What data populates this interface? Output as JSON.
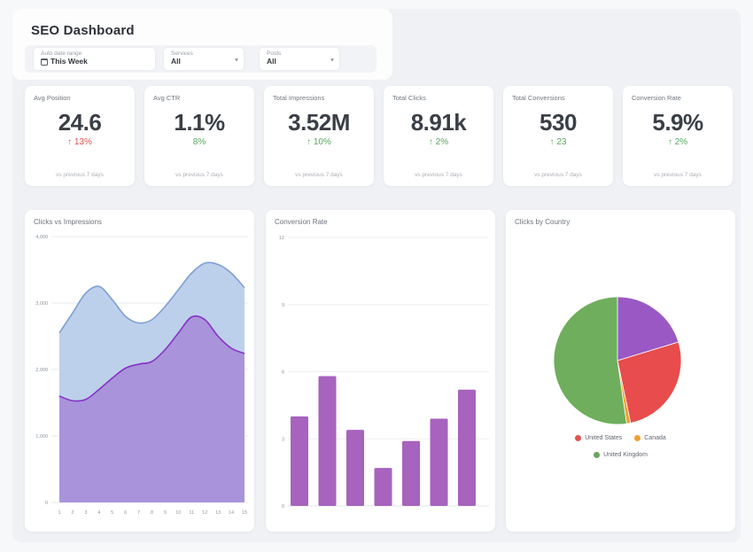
{
  "page": {
    "title": "SEO Dashboard"
  },
  "filters": {
    "date_range": {
      "label": "Auto date range",
      "value": "This Week",
      "icon": "calendar-icon"
    },
    "services": {
      "label": "Services",
      "value": "All",
      "icon": "chevron-down-icon",
      "chevron": "▾"
    },
    "posts": {
      "label": "Posts",
      "value": "All",
      "icon": "chevron-down-icon",
      "chevron": "▾"
    }
  },
  "kpis": [
    {
      "label": "Avg Position",
      "value": "24.6",
      "delta": "↑ 13%",
      "delta_color": "#d9534f",
      "footnote": "vs previous 7 days"
    },
    {
      "label": "Avg CTR",
      "value": "1.1%",
      "delta": "8%",
      "delta_color": "#58a85c",
      "footnote": "vs previous 7 days"
    },
    {
      "label": "Total Impressions",
      "value": "3.52M",
      "delta": "↑ 10%",
      "delta_color": "#58a85c",
      "footnote": "vs previous 7 days"
    },
    {
      "label": "Total Clicks",
      "value": "8.91k",
      "delta": "↑ 2%",
      "delta_color": "#58a85c",
      "footnote": "vs previous 7 days"
    },
    {
      "label": "Total Conversions",
      "value": "530",
      "delta": "↑ 23",
      "delta_color": "#58a85c",
      "footnote": "vs previous 7 days"
    },
    {
      "label": "Conversion Rate",
      "value": "5.9%",
      "delta": "↑ 2%",
      "delta_color": "#58a85c",
      "footnote": "vs previous 7 days"
    }
  ],
  "chart_data": [
    {
      "type": "area",
      "title": "Clicks vs Impressions",
      "x": [
        1,
        2,
        3,
        4,
        5,
        6,
        7,
        8,
        9,
        10,
        11,
        12,
        13,
        14,
        15
      ],
      "series": [
        {
          "name": "Impressions",
          "values": [
            2550,
            2850,
            3150,
            3250,
            3050,
            2800,
            2700,
            2750,
            2950,
            3200,
            3450,
            3600,
            3580,
            3450,
            3230
          ],
          "line_color": "#7e9fd4",
          "fill_color": "#b9cdea"
        },
        {
          "name": "Clicks",
          "values": [
            1600,
            1530,
            1550,
            1700,
            1870,
            2020,
            2080,
            2120,
            2300,
            2550,
            2790,
            2750,
            2500,
            2320,
            2240
          ],
          "line_color": "#8632c6",
          "fill_color": "#a88fd9"
        }
      ],
      "ylim": [
        0,
        4000
      ],
      "yticks": [
        0,
        1000,
        2000,
        3000,
        4000
      ],
      "ytick_labels": [
        "0",
        "1,000",
        "2,000",
        "3,000",
        "4,000"
      ],
      "grid": true,
      "legend": "none"
    },
    {
      "type": "bar",
      "title": "Conversion Rate",
      "categories": [
        "",
        "",
        "",
        "",
        "",
        "",
        ""
      ],
      "values": [
        4.0,
        5.8,
        3.4,
        1.7,
        2.9,
        3.9,
        5.2
      ],
      "bar_color": "#a763bd",
      "ylim": [
        0,
        12
      ],
      "yticks": [
        0,
        3,
        6,
        9,
        12
      ],
      "ytick_labels": [
        "0",
        "3",
        "6",
        "9",
        "12"
      ],
      "grid": true,
      "legend": "none"
    },
    {
      "type": "pie",
      "title": "Clicks by Country",
      "slices": [
        {
          "label": "",
          "value": 20.3,
          "color": "#9a58c5"
        },
        {
          "label": "United States",
          "value": 26.4,
          "color": "#e84c4c"
        },
        {
          "label": "Canada",
          "value": 1.0,
          "color": "#f0a12f"
        },
        {
          "label": "United Kingdom",
          "value": 52.3,
          "color": "#6fae5c"
        }
      ],
      "legend_position": "bottom",
      "legend": [
        {
          "label": "United States",
          "color": "#e25450"
        },
        {
          "label": "Canada",
          "color": "#efa02f"
        },
        {
          "label": "United Kingdom",
          "color": "#67a561"
        }
      ]
    }
  ]
}
